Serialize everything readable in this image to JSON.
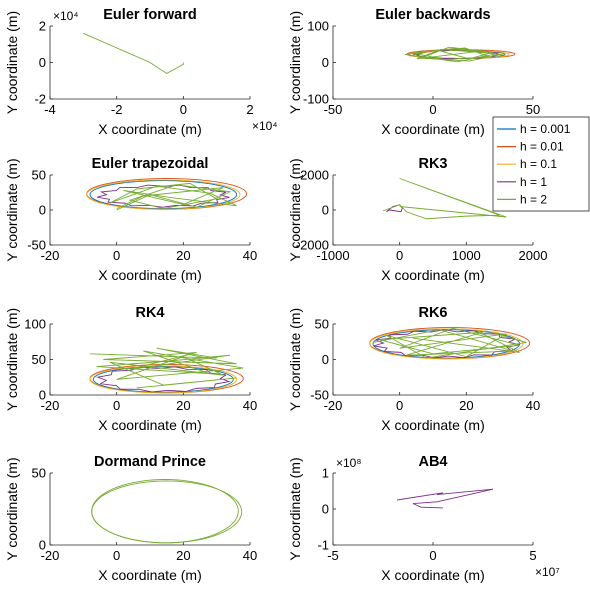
{
  "chart_data": [
    {
      "type": "line",
      "title": "Euler forward",
      "xlabel": "X coordinate (m)",
      "ylabel": "Y coordinate (m)",
      "xlim": [
        -40000,
        20000
      ],
      "ylim": [
        -20000,
        20000
      ],
      "xticks": [
        -40000,
        -20000,
        0,
        20000
      ],
      "yticks": [
        -20000,
        0,
        20000
      ],
      "xtick_labels": [
        "-4",
        "-2",
        "0",
        "2"
      ],
      "ytick_labels": [
        "-2",
        "0",
        "2"
      ],
      "x_exponent": "×10⁴",
      "y_exponent": "×10⁴",
      "series": [
        {
          "color": "#77ac30",
          "x": [
            -30000,
            -20000,
            -10000,
            -5000,
            -2000,
            0,
            0
          ],
          "y": [
            16000,
            8000,
            0,
            -6000,
            -3000,
            -1000,
            0
          ]
        }
      ]
    },
    {
      "type": "line",
      "title": "Euler backwards",
      "xlabel": "X coordinate (m)",
      "ylabel": "Y coordinate (m)",
      "xlim": [
        -50,
        50
      ],
      "ylim": [
        -100,
        100
      ],
      "xticks": [
        -50,
        0,
        50
      ],
      "yticks": [
        -100,
        0,
        100
      ],
      "xtick_labels": [
        "-50",
        "0",
        "50"
      ],
      "ytick_labels": [
        "-100",
        "0",
        "100"
      ],
      "series": [
        {
          "color": "#0072bd",
          "shape": "ellipse",
          "cx": 12,
          "cy": 22,
          "rx": 24,
          "ry": 11
        },
        {
          "color": "#d95319",
          "shape": "ellipse",
          "cx": 14,
          "cy": 23,
          "rx": 27,
          "ry": 12
        },
        {
          "color": "#edb120",
          "shape": "ellipse",
          "cx": 13,
          "cy": 22,
          "rx": 25,
          "ry": 11
        },
        {
          "color": "#7e2f8e",
          "shape": "polygon",
          "cx": 12,
          "cy": 22,
          "rx": 22,
          "ry": 12,
          "n": 28
        },
        {
          "color": "#77ac30",
          "x": [
            -12,
            2,
            18,
            30,
            8,
            -6,
            18,
            34,
            10,
            -10,
            6,
            28,
            16,
            -2,
            -14,
            12,
            32,
            4,
            -8,
            22,
            36
          ],
          "y": [
            18,
            34,
            10,
            28,
            42,
            12,
            4,
            22,
            38,
            26,
            8,
            16,
            40,
            30,
            22,
            2,
            24,
            36,
            10,
            30,
            20
          ]
        }
      ]
    },
    {
      "type": "line",
      "title": "Euler trapezoidal",
      "xlabel": "X coordinate (m)",
      "ylabel": "Y coordinate (m)",
      "xlim": [
        -20,
        40
      ],
      "ylim": [
        -50,
        50
      ],
      "xticks": [
        -20,
        0,
        20,
        40
      ],
      "yticks": [
        -50,
        0,
        50
      ],
      "xtick_labels": [
        "-20",
        "0",
        "20",
        "40"
      ],
      "ytick_labels": [
        "-50",
        "0",
        "50"
      ],
      "series": [
        {
          "color": "#0072bd",
          "shape": "ellipse",
          "cx": 14,
          "cy": 22,
          "rx": 22,
          "ry": 20
        },
        {
          "color": "#d95319",
          "shape": "ellipse",
          "cx": 15,
          "cy": 23,
          "rx": 24,
          "ry": 22
        },
        {
          "color": "#edb120",
          "shape": "ellipse",
          "cx": 14,
          "cy": 22,
          "rx": 23,
          "ry": 21
        },
        {
          "color": "#7e2f8e",
          "shape": "polygon",
          "cx": 14,
          "cy": 20,
          "rx": 20,
          "ry": 16,
          "n": 26
        },
        {
          "color": "#77ac30",
          "x": [
            0,
            10,
            24,
            34,
            18,
            4,
            14,
            30,
            22,
            6,
            -2,
            12,
            28,
            36,
            16,
            2,
            20,
            32,
            8,
            0
          ],
          "y": [
            0,
            22,
            4,
            26,
            36,
            14,
            2,
            16,
            38,
            30,
            10,
            34,
            24,
            6,
            18,
            28,
            8,
            32,
            20,
            2
          ]
        }
      ]
    },
    {
      "type": "line",
      "title": "RK3",
      "xlabel": "X coordinate (m)",
      "ylabel": "Y coordinate (m)",
      "xlim": [
        -1000,
        2000
      ],
      "ylim": [
        -2000,
        2000
      ],
      "xticks": [
        -1000,
        0,
        1000,
        2000
      ],
      "yticks": [
        -2000,
        0,
        2000
      ],
      "xtick_labels": [
        "-1000",
        "0",
        "1000",
        "2000"
      ],
      "ytick_labels": [
        "-2000",
        "0",
        "2000"
      ],
      "series": [
        {
          "color": "#7e2f8e",
          "x": [
            -200,
            -100,
            0,
            40,
            20,
            -60,
            -150,
            -200
          ],
          "y": [
            -100,
            200,
            300,
            100,
            -100,
            -50,
            0,
            -100
          ]
        },
        {
          "color": "#77ac30",
          "x": [
            -250,
            0,
            100,
            400,
            1000,
            1500,
            1000,
            0,
            1600,
            0
          ],
          "y": [
            -50,
            300,
            -100,
            -500,
            -350,
            -300,
            400,
            1800,
            -400,
            200
          ]
        }
      ]
    },
    {
      "type": "line",
      "title": "RK4",
      "xlabel": "X coordinate (m)",
      "ylabel": "Y coordinate (m)",
      "xlim": [
        -20,
        40
      ],
      "ylim": [
        0,
        100
      ],
      "xticks": [
        -20,
        0,
        20,
        40
      ],
      "yticks": [
        0,
        50,
        100
      ],
      "xtick_labels": [
        "-20",
        "0",
        "20",
        "40"
      ],
      "ytick_labels": [
        "0",
        "50",
        "100"
      ],
      "series": [
        {
          "color": "#0072bd",
          "shape": "ellipse",
          "cx": 14,
          "cy": 22,
          "rx": 21,
          "ry": 18
        },
        {
          "color": "#d95319",
          "shape": "ellipse",
          "cx": 15,
          "cy": 23,
          "rx": 23,
          "ry": 20
        },
        {
          "color": "#edb120",
          "shape": "ellipse",
          "cx": 14,
          "cy": 22,
          "rx": 22,
          "ry": 19
        },
        {
          "color": "#7e2f8e",
          "shape": "polygon",
          "cx": 14,
          "cy": 22,
          "rx": 20,
          "ry": 18,
          "n": 24
        },
        {
          "color": "#77ac30",
          "x": [
            -8,
            30,
            12,
            36,
            -4,
            24,
            4,
            34,
            16,
            -6,
            28,
            8,
            38,
            0,
            20,
            32,
            -2,
            14,
            36,
            6
          ],
          "y": [
            58,
            52,
            66,
            44,
            50,
            60,
            36,
            56,
            48,
            40,
            30,
            62,
            38,
            22,
            54,
            28,
            46,
            14,
            24,
            10
          ]
        }
      ]
    },
    {
      "type": "line",
      "title": "RK6",
      "xlabel": "X coordinate (m)",
      "ylabel": "Y coordinate (m)",
      "xlim": [
        -20,
        40
      ],
      "ylim": [
        -50,
        50
      ],
      "xticks": [
        -20,
        0,
        20,
        40
      ],
      "yticks": [
        -50,
        0,
        50
      ],
      "xtick_labels": [
        "-20",
        "0",
        "20",
        "40"
      ],
      "ytick_labels": [
        "-50",
        "0",
        "50"
      ],
      "series": [
        {
          "color": "#0072bd",
          "shape": "ellipse",
          "cx": 14,
          "cy": 22,
          "rx": 22,
          "ry": 20
        },
        {
          "color": "#d95319",
          "shape": "ellipse",
          "cx": 15,
          "cy": 23,
          "rx": 24,
          "ry": 22
        },
        {
          "color": "#edb120",
          "shape": "ellipse",
          "cx": 14,
          "cy": 22,
          "rx": 23,
          "ry": 21
        },
        {
          "color": "#7e2f8e",
          "shape": "polygon",
          "cx": 14,
          "cy": 22,
          "rx": 22,
          "ry": 20,
          "n": 30
        },
        {
          "color": "#77ac30",
          "x": [
            -8,
            12,
            34,
            2,
            26,
            38,
            8,
            -4,
            20,
            32,
            0,
            16,
            36,
            10,
            -6,
            24,
            36,
            4
          ],
          "y": [
            24,
            42,
            12,
            6,
            40,
            24,
            2,
            34,
            4,
            36,
            16,
            44,
            20,
            8,
            28,
            38,
            10,
            30
          ]
        }
      ]
    },
    {
      "type": "line",
      "title": "Dormand Prince",
      "xlabel": "X coordinate (m)",
      "ylabel": "Y coordinate (m)",
      "xlim": [
        -20,
        40
      ],
      "ylim": [
        0,
        50
      ],
      "xticks": [
        -20,
        0,
        20,
        40
      ],
      "yticks": [
        0,
        50
      ],
      "xtick_labels": [
        "-20",
        "0",
        "20",
        "40"
      ],
      "ytick_labels": [
        "0",
        "50"
      ],
      "series": [
        {
          "color": "#77ac30",
          "shape": "ellipse",
          "cx": 14.5,
          "cy": 23.5,
          "rx": 22,
          "ry": 22
        },
        {
          "color": "#77ac30",
          "shape": "ellipse",
          "cx": 15,
          "cy": 23,
          "rx": 22.5,
          "ry": 21.5
        }
      ]
    },
    {
      "type": "line",
      "title": "AB4",
      "xlabel": "X coordinate (m)",
      "ylabel": "Y coordinate (m)",
      "xlim": [
        -50000000,
        50000000
      ],
      "ylim": [
        -100000000,
        100000000
      ],
      "xticks": [
        -50000000,
        0,
        50000000
      ],
      "yticks": [
        -100000000,
        0,
        100000000
      ],
      "xtick_labels": [
        "-5",
        "0",
        "5"
      ],
      "ytick_labels": [
        "-1",
        "0",
        "1"
      ],
      "x_exponent": "×10⁷",
      "y_exponent": "×10⁸",
      "series": [
        {
          "color": "#7e2f8e",
          "x": [
            -18000000,
            5000000,
            2000000,
            30000000,
            2000000,
            -10000000,
            -6000000,
            5000000
          ],
          "y": [
            25000000,
            45000000,
            40000000,
            55000000,
            20000000,
            15000000,
            5000000,
            3000000
          ]
        }
      ]
    }
  ],
  "legend": {
    "placement": "right-center",
    "items": [
      {
        "label": "h = 0.001",
        "color": "#0072bd"
      },
      {
        "label": "h = 0.01",
        "color": "#d95319"
      },
      {
        "label": "h = 0.1",
        "color": "#edb120"
      },
      {
        "label": "h = 1",
        "color": "#7e2f8e"
      },
      {
        "label": "h = 2",
        "color": "#77ac30"
      }
    ]
  }
}
